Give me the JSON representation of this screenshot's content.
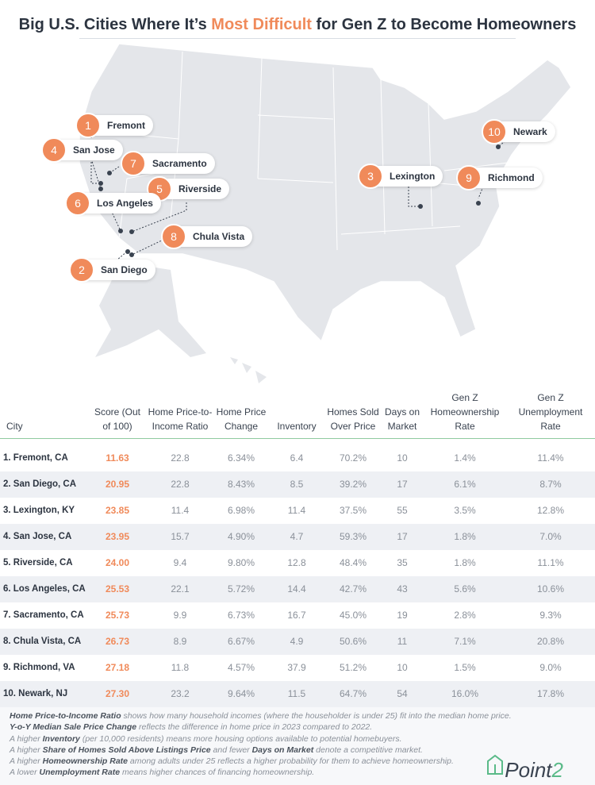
{
  "title": {
    "pre": "Big U.S. Cities Where It’s ",
    "accent": "Most Difficult",
    "post": " for Gen Z to Become Homeowners"
  },
  "colors": {
    "accent": "#f08a5a",
    "green": "#5aba88",
    "map": "#e4e6ea"
  },
  "map_labels": [
    {
      "rank": "1",
      "city": "Fremont"
    },
    {
      "rank": "4",
      "city": "San Jose"
    },
    {
      "rank": "7",
      "city": "Sacramento"
    },
    {
      "rank": "5",
      "city": "Riverside"
    },
    {
      "rank": "6",
      "city": "Los Angeles"
    },
    {
      "rank": "8",
      "city": "Chula Vista"
    },
    {
      "rank": "2",
      "city": "San Diego"
    },
    {
      "rank": "3",
      "city": "Lexington"
    },
    {
      "rank": "10",
      "city": "Newark"
    },
    {
      "rank": "9",
      "city": "Richmond"
    }
  ],
  "table": {
    "headers": [
      "City",
      "Score (Out of 100)",
      "Home Price-to-Income Ratio",
      "Home Price Change",
      "Inventory",
      "Homes Sold Over Price",
      "Days on Market",
      "Gen Z Homeownership Rate",
      "Gen Z Unemployment Rate"
    ],
    "rows": [
      [
        "1. Fremont, CA",
        "11.63",
        "22.8",
        "6.34%",
        "6.4",
        "70.2%",
        "10",
        "1.4%",
        "11.4%"
      ],
      [
        "2. San Diego, CA",
        "20.95",
        "22.8",
        "8.43%",
        "8.5",
        "39.2%",
        "17",
        "6.1%",
        "8.7%"
      ],
      [
        "3. Lexington, KY",
        "23.85",
        "11.4",
        "6.98%",
        "11.4",
        "37.5%",
        "55",
        "3.5%",
        "12.8%"
      ],
      [
        "4. San Jose, CA",
        "23.95",
        "15.7",
        "4.90%",
        "4.7",
        "59.3%",
        "17",
        "1.8%",
        "7.0%"
      ],
      [
        "5. Riverside, CA",
        "24.00",
        "9.4",
        "9.80%",
        "12.8",
        "48.4%",
        "35",
        "1.8%",
        "11.1%"
      ],
      [
        "6. Los Angeles, CA",
        "25.53",
        "22.1",
        "5.72%",
        "14.4",
        "42.7%",
        "43",
        "5.6%",
        "10.6%"
      ],
      [
        "7. Sacramento, CA",
        "25.73",
        "9.9",
        "6.73%",
        "16.7",
        "45.0%",
        "19",
        "2.8%",
        "9.3%"
      ],
      [
        "8. Chula Vista, CA",
        "26.73",
        "8.9",
        "6.67%",
        "4.9",
        "50.6%",
        "11",
        "7.1%",
        "20.8%"
      ],
      [
        "9. Richmond, VA",
        "27.18",
        "11.8",
        "4.57%",
        "37.9",
        "51.2%",
        "10",
        "1.5%",
        "9.0%"
      ],
      [
        "10. Newark, NJ",
        "27.30",
        "23.2",
        "9.64%",
        "11.5",
        "64.7%",
        "54",
        "16.0%",
        "17.8%"
      ]
    ]
  },
  "notes": [
    {
      "b": "Home Price-to-Income Ratio",
      "t": " shows how many household incomes (where the householder is under 25) fit into the median home price."
    },
    {
      "b": "Y-o-Y Median Sale Price Change",
      "t": " reflects the difference in home price in 2023 compared to 2022."
    },
    {
      "p": "A higher ",
      "b": "Inventory",
      "t": " (per 10,000 residents) means more housing options available to potential homebuyers."
    },
    {
      "p": "A higher ",
      "b": "Share of Homes Sold Above Listings Price",
      "m": " and fewer ",
      "b2": "Days on Market",
      "t": " denote a competitive market."
    },
    {
      "p": "A higher ",
      "b": "Homeownership Rate",
      "t": " among adults under 25 reflects a higher probability for them to achieve homeownership."
    },
    {
      "p": "A lower ",
      "b": "Unemployment Rate",
      "t": " means higher chances of financing homeownership."
    }
  ],
  "logo": {
    "text": "Point",
    "num": "2"
  }
}
